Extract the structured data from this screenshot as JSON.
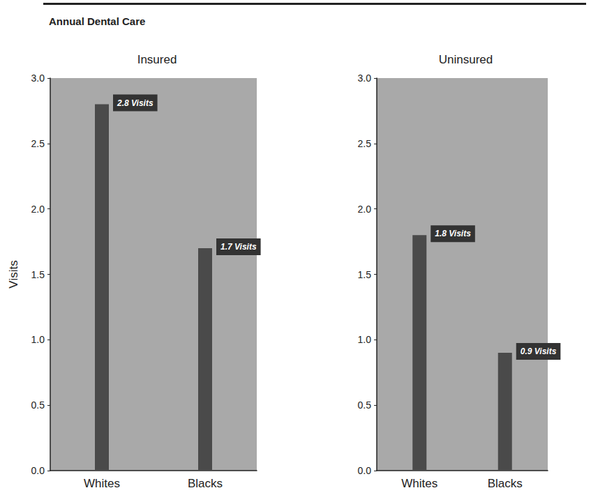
{
  "title": "Annual Dental Care",
  "chart_data": [
    {
      "type": "bar",
      "title": "Insured",
      "ylabel": "Visits",
      "categories": [
        "Whites",
        "Blacks"
      ],
      "values": [
        2.8,
        1.7
      ],
      "value_labels": [
        "2.8 Visits",
        "1.7 Visits"
      ],
      "color": "#4a4a4a",
      "ylim": [
        0,
        3
      ],
      "yticks": [
        {
          "value": 0,
          "label": "0.0"
        },
        {
          "value": 0.5,
          "label": "0.5"
        },
        {
          "value": 1,
          "label": "1.0"
        },
        {
          "value": 1.5,
          "label": "1.5"
        },
        {
          "value": 2,
          "label": "2.0"
        },
        {
          "value": 2.5,
          "label": "2.5"
        },
        {
          "value": 3,
          "label": "3.0"
        }
      ],
      "grid": false,
      "data_labels": true
    },
    {
      "type": "bar",
      "title": "Uninsured",
      "categories": [
        "Whites",
        "Blacks"
      ],
      "values": [
        1.8,
        0.9
      ],
      "value_labels": [
        "1.8 Visits",
        "0.9 Visits"
      ],
      "color": "#4a4a4a",
      "ylim": [
        0,
        3
      ],
      "yticks": [
        {
          "value": 0,
          "label": "0.0"
        },
        {
          "value": 0.5,
          "label": "0.5"
        },
        {
          "value": 1,
          "label": "1.0"
        },
        {
          "value": 1.5,
          "label": "1.5"
        },
        {
          "value": 2,
          "label": "2.0"
        },
        {
          "value": 2.5,
          "label": "2.5"
        },
        {
          "value": 3,
          "label": "3.0"
        }
      ],
      "grid": false,
      "data_labels": true
    }
  ]
}
